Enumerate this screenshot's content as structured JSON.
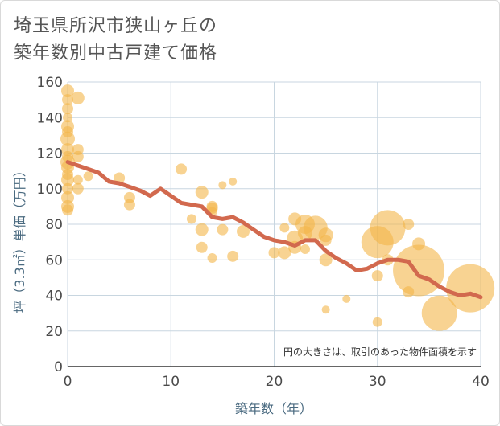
{
  "title_lines": [
    "埼玉県所沢市狭山ヶ丘の",
    "築年数別中古戸建て価格"
  ],
  "colors": {
    "bubble": "#f3b54a",
    "line": "#d2694e",
    "grid": "#c8d6e0",
    "axis_text": "#4a6a80"
  },
  "chart_data": {
    "type": "scatter",
    "xlabel": "築年数（年）",
    "ylabel": "坪（3.3㎡）単価（万円）",
    "xlim": [
      0,
      40
    ],
    "ylim": [
      0,
      160
    ],
    "x_ticks": [
      0,
      10,
      20,
      30,
      40
    ],
    "y_ticks": [
      0,
      20,
      40,
      60,
      80,
      100,
      120,
      140,
      160
    ],
    "grid": true,
    "note": "円の大きさは、取引のあった物件面積を示す",
    "bubbles": [
      {
        "x": 0,
        "y": 155,
        "r": 8
      },
      {
        "x": 0,
        "y": 150,
        "r": 7
      },
      {
        "x": 0,
        "y": 145,
        "r": 7
      },
      {
        "x": 0,
        "y": 140,
        "r": 6
      },
      {
        "x": 0,
        "y": 135,
        "r": 8
      },
      {
        "x": 0,
        "y": 132,
        "r": 7
      },
      {
        "x": 0,
        "y": 128,
        "r": 9
      },
      {
        "x": 0,
        "y": 122,
        "r": 8
      },
      {
        "x": 0,
        "y": 118,
        "r": 7
      },
      {
        "x": 0,
        "y": 115,
        "r": 9
      },
      {
        "x": 0,
        "y": 112,
        "r": 8
      },
      {
        "x": 0,
        "y": 108,
        "r": 7
      },
      {
        "x": 0,
        "y": 105,
        "r": 8
      },
      {
        "x": 0,
        "y": 100,
        "r": 7
      },
      {
        "x": 0,
        "y": 95,
        "r": 8
      },
      {
        "x": 0,
        "y": 90,
        "r": 8
      },
      {
        "x": 0,
        "y": 88,
        "r": 7
      },
      {
        "x": 1,
        "y": 151,
        "r": 8
      },
      {
        "x": 1,
        "y": 122,
        "r": 7
      },
      {
        "x": 1,
        "y": 118,
        "r": 7
      },
      {
        "x": 1,
        "y": 105,
        "r": 6
      },
      {
        "x": 1,
        "y": 100,
        "r": 7
      },
      {
        "x": 2,
        "y": 107,
        "r": 6
      },
      {
        "x": 5,
        "y": 106,
        "r": 7
      },
      {
        "x": 6,
        "y": 95,
        "r": 7
      },
      {
        "x": 6,
        "y": 91,
        "r": 7
      },
      {
        "x": 11,
        "y": 111,
        "r": 7
      },
      {
        "x": 12,
        "y": 83,
        "r": 6
      },
      {
        "x": 13,
        "y": 98,
        "r": 8
      },
      {
        "x": 13,
        "y": 77,
        "r": 8
      },
      {
        "x": 13,
        "y": 67,
        "r": 7
      },
      {
        "x": 14,
        "y": 90,
        "r": 7
      },
      {
        "x": 14,
        "y": 89,
        "r": 7
      },
      {
        "x": 14,
        "y": 87,
        "r": 6
      },
      {
        "x": 14,
        "y": 61,
        "r": 6
      },
      {
        "x": 15,
        "y": 102,
        "r": 5
      },
      {
        "x": 15,
        "y": 77,
        "r": 7
      },
      {
        "x": 16,
        "y": 104,
        "r": 5
      },
      {
        "x": 16,
        "y": 62,
        "r": 7
      },
      {
        "x": 17,
        "y": 76,
        "r": 8
      },
      {
        "x": 20,
        "y": 64,
        "r": 7
      },
      {
        "x": 21,
        "y": 78,
        "r": 6
      },
      {
        "x": 21,
        "y": 64,
        "r": 8
      },
      {
        "x": 22,
        "y": 83,
        "r": 8
      },
      {
        "x": 22,
        "y": 72,
        "r": 10
      },
      {
        "x": 22,
        "y": 67,
        "r": 8
      },
      {
        "x": 23,
        "y": 80,
        "r": 12
      },
      {
        "x": 23,
        "y": 75,
        "r": 9
      },
      {
        "x": 23,
        "y": 66,
        "r": 6
      },
      {
        "x": 24,
        "y": 78,
        "r": 15
      },
      {
        "x": 25,
        "y": 74,
        "r": 9
      },
      {
        "x": 25,
        "y": 71,
        "r": 7
      },
      {
        "x": 25,
        "y": 60,
        "r": 8
      },
      {
        "x": 25,
        "y": 32,
        "r": 5
      },
      {
        "x": 27,
        "y": 38,
        "r": 5
      },
      {
        "x": 30,
        "y": 70,
        "r": 20
      },
      {
        "x": 30,
        "y": 51,
        "r": 7
      },
      {
        "x": 30,
        "y": 25,
        "r": 6
      },
      {
        "x": 31,
        "y": 78,
        "r": 22
      },
      {
        "x": 31,
        "y": 60,
        "r": 7
      },
      {
        "x": 33,
        "y": 80,
        "r": 7
      },
      {
        "x": 33,
        "y": 42,
        "r": 7
      },
      {
        "x": 34,
        "y": 69,
        "r": 8
      },
      {
        "x": 34,
        "y": 54,
        "r": 32
      },
      {
        "x": 36,
        "y": 30,
        "r": 22
      },
      {
        "x": 39,
        "y": 44,
        "r": 30
      }
    ],
    "trend": {
      "name": "",
      "x": [
        0,
        1,
        2,
        3,
        4,
        5,
        6,
        7,
        8,
        9,
        10,
        11,
        12,
        13,
        14,
        15,
        16,
        17,
        18,
        19,
        20,
        21,
        22,
        23,
        24,
        25,
        26,
        27,
        28,
        29,
        30,
        31,
        32,
        33,
        34,
        35,
        36,
        37,
        38,
        39,
        40
      ],
      "y": [
        115,
        113,
        111,
        109,
        104,
        103,
        101,
        99,
        96,
        100,
        96,
        92,
        91,
        90,
        84,
        83,
        84,
        81,
        77,
        73,
        71,
        70,
        68,
        71,
        71,
        65,
        61,
        58,
        54,
        55,
        58,
        60,
        60,
        59,
        51,
        49,
        45,
        42,
        40,
        41,
        39
      ]
    }
  }
}
